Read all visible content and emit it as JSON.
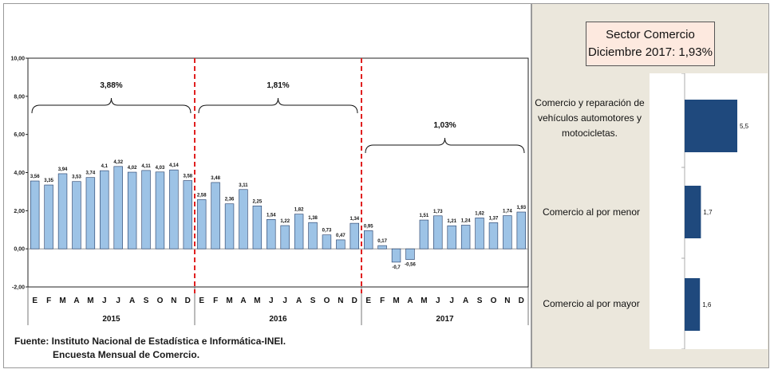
{
  "sector_box": {
    "title": "Sector Comercio",
    "subtitle": "Diciembre 2017: 1,93%"
  },
  "source": {
    "line1": "Fuente: Instituto Nacional de Estadística e Informática-INEI.",
    "line2": "Encuesta Mensual de Comercio."
  },
  "chart_data": [
    {
      "type": "bar",
      "categories": [
        "E",
        "F",
        "M",
        "A",
        "M",
        "J",
        "J",
        "A",
        "S",
        "O",
        "N",
        "D",
        "E",
        "F",
        "M",
        "A",
        "M",
        "J",
        "J",
        "A",
        "S",
        "O",
        "N",
        "D",
        "E",
        "F",
        "M",
        "A",
        "M",
        "J",
        "J",
        "A",
        "S",
        "O",
        "N",
        "D"
      ],
      "values": [
        3.56,
        3.35,
        3.94,
        3.53,
        3.74,
        4.1,
        4.32,
        4.02,
        4.11,
        4.03,
        4.14,
        3.58,
        2.58,
        3.48,
        2.36,
        3.11,
        2.25,
        1.54,
        1.22,
        1.82,
        1.38,
        0.73,
        0.47,
        1.34,
        0.95,
        0.17,
        -0.7,
        -0.56,
        1.51,
        1.73,
        1.21,
        1.24,
        1.62,
        1.37,
        1.74,
        1.93
      ],
      "value_labels": [
        "3,56",
        "3,35",
        "3,94",
        "3,53",
        "3,74",
        "4,1",
        "4,32",
        "4,02",
        "4,11",
        "4,03",
        "4,14",
        "3,58",
        "2,58",
        "3,48",
        "2,36",
        "3,11",
        "2,25",
        "1,54",
        "1,22",
        "1,82",
        "1,38",
        "0,73",
        "0,47",
        "1,34",
        "0,95",
        "0,17",
        "-0,7",
        "-0,56",
        "1,51",
        "1,73",
        "1,21",
        "1,24",
        "1,62",
        "1,37",
        "1,74",
        "1,93"
      ],
      "ylim": [
        -2,
        10
      ],
      "y_ticks": [
        -2,
        0,
        2,
        4,
        6,
        8,
        10
      ],
      "y_tick_labels": [
        "-2,00",
        "0,00",
        "2,00",
        "4,00",
        "6,00",
        "8,00",
        "10,00"
      ],
      "years": [
        "2015",
        "2016",
        "2017"
      ],
      "annual_labels": [
        "3,88%",
        "1,81%",
        "1,03%"
      ],
      "bar_color": "#9dc3e6",
      "bar_stroke": "#1f3864",
      "separator_color": "#e02020",
      "grid": false
    },
    {
      "type": "bar",
      "orientation": "horizontal",
      "categories": [
        "Comercio y reparación de vehículos automotores y motocicletas.",
        "Comercio al por menor",
        "Comercio al por mayor"
      ],
      "values": [
        5.5,
        1.7,
        1.6
      ],
      "value_labels": [
        "5,5",
        "1,7",
        "1,6"
      ],
      "bar_color": "#1f497d",
      "xlim": [
        0,
        8
      ]
    }
  ]
}
